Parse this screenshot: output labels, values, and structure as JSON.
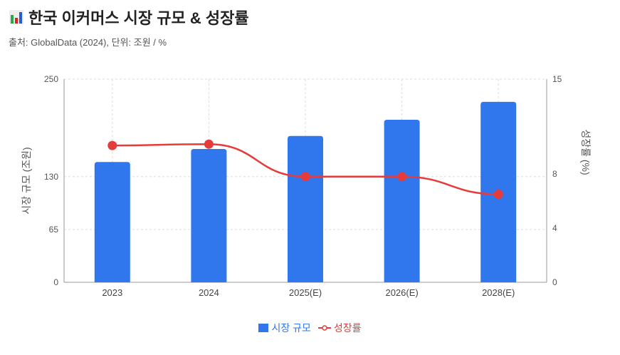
{
  "header": {
    "title": "한국 이커머스 시장 규모 & 성장률",
    "subtitle": "출처: GlobalData (2024), 단위: 조원 / %",
    "icon": "bar-chart-icon"
  },
  "chart_data": {
    "type": "bar+line",
    "title": "한국 이커머스 시장 규모 & 성장률",
    "categories": [
      "2023",
      "2024",
      "2025(E)",
      "2026(E)",
      "2028(E)"
    ],
    "series": [
      {
        "name": "시장 규모",
        "type": "bar",
        "axis": "left",
        "color": "#3077ee",
        "values": [
          148,
          164,
          180,
          200,
          222
        ]
      },
      {
        "name": "성장률",
        "type": "line",
        "axis": "right",
        "color": "#e63b3b",
        "values": [
          10.1,
          10.2,
          7.8,
          7.8,
          6.5
        ]
      }
    ],
    "ylabel": "시장 규모 (조원)",
    "y2label": "성장률 (%)",
    "ylim": [
      0,
      250
    ],
    "yticks": [
      "0",
      "65",
      "130",
      "250"
    ],
    "ytick_values": [
      0,
      65,
      130,
      250
    ],
    "y2lim": [
      0,
      15
    ],
    "y2ticks": [
      "0",
      "4",
      "8",
      "15"
    ],
    "y2tick_values": [
      0,
      4,
      8,
      15
    ],
    "grid": true,
    "legend": "bottom"
  }
}
